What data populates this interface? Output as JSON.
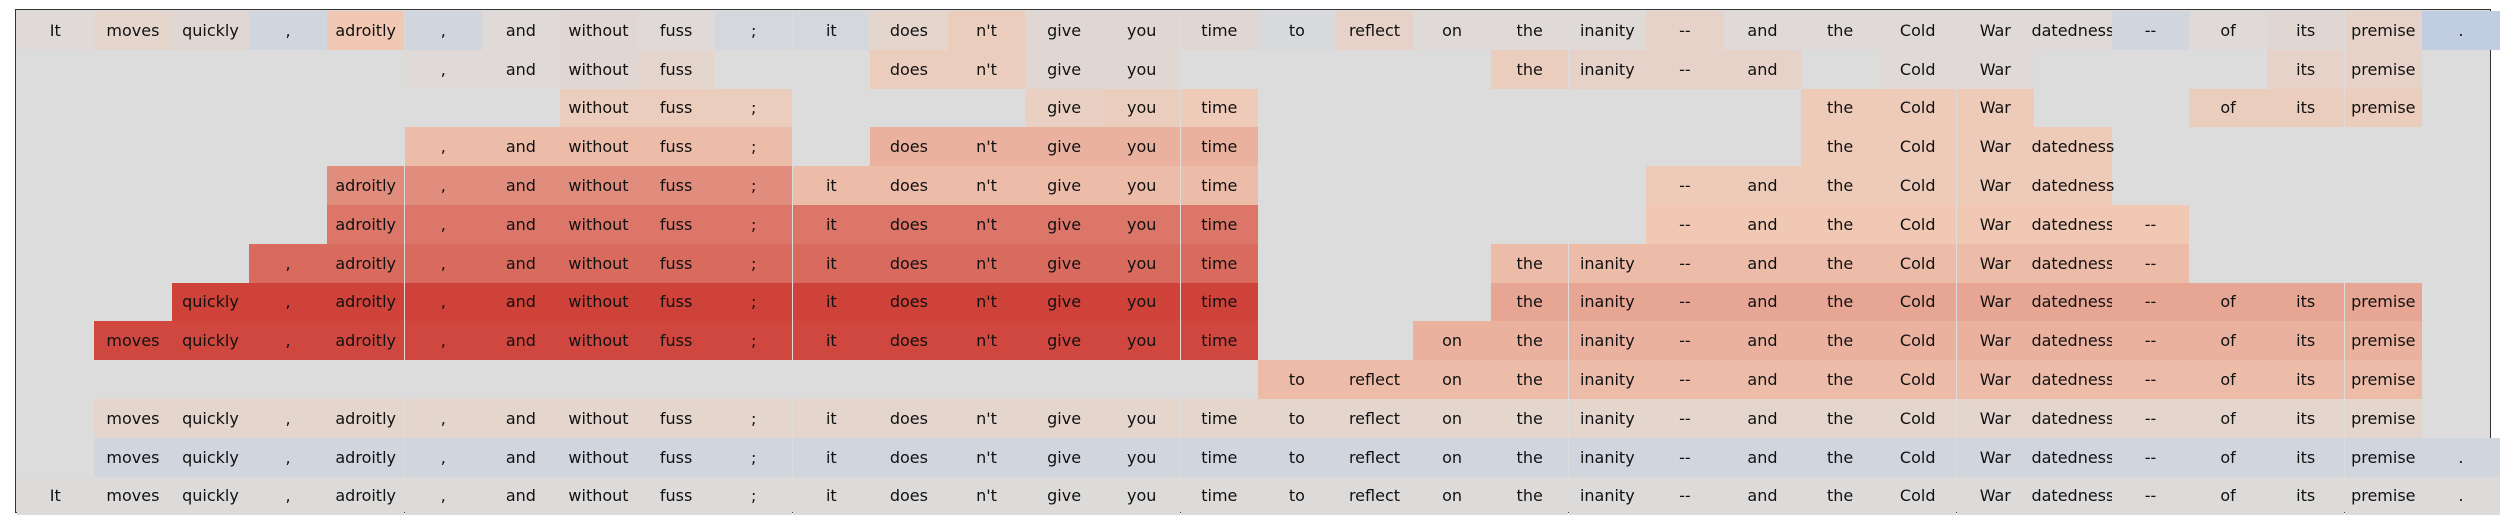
{
  "diagram": {
    "tokens": [
      "It",
      "moves",
      "quickly",
      ",",
      "adroitly",
      ",",
      "and",
      "without",
      "fuss",
      ";",
      "it",
      "does",
      "n't",
      "give",
      "you",
      "time",
      "to",
      "reflect",
      "on",
      "the",
      "inanity",
      "--",
      "and",
      "the",
      "Cold",
      "War",
      "datedness",
      "--",
      "of",
      "its",
      "premise",
      "."
    ],
    "rows": [
      {
        "present": [
          0,
          1,
          2,
          3,
          4,
          5,
          6,
          7,
          8,
          9,
          10,
          11,
          12,
          13,
          14,
          15,
          16,
          17,
          18,
          19,
          20,
          21,
          22,
          23,
          24,
          25,
          26,
          27,
          28,
          29,
          30,
          31
        ],
        "weights": [
          0.05,
          0.15,
          0.1,
          -0.15,
          0.4,
          -0.15,
          0.05,
          0.1,
          0.05,
          -0.1,
          -0.1,
          0.15,
          0.3,
          0.1,
          0.1,
          0.1,
          -0.05,
          0.2,
          0.05,
          0.05,
          0.05,
          0.2,
          0.05,
          0.05,
          0.05,
          0.05,
          0.05,
          -0.15,
          0.05,
          0.1,
          0.2,
          -0.35
        ]
      },
      {
        "present": [
          5,
          6,
          7,
          8,
          11,
          12,
          13,
          14,
          19,
          20,
          21,
          22,
          24,
          25,
          29,
          30
        ],
        "weights": [
          0.05,
          0.05,
          0.1,
          0.15,
          0.3,
          0.3,
          0.1,
          0.1,
          0.3,
          0.2,
          0.2,
          0.2,
          0.05,
          0.05,
          0.2,
          0.2
        ]
      },
      {
        "present": [
          7,
          8,
          9,
          13,
          14,
          15,
          23,
          24,
          25,
          28,
          29,
          30
        ],
        "weights": [
          0.3,
          0.3,
          0.3,
          0.25,
          0.3,
          0.35,
          0.35,
          0.35,
          0.35,
          0.3,
          0.3,
          0.3
        ]
      },
      {
        "present": [
          5,
          6,
          7,
          8,
          9,
          11,
          12,
          13,
          14,
          15,
          23,
          24,
          25,
          26
        ],
        "weights": [
          0.45,
          0.45,
          0.45,
          0.45,
          0.45,
          0.5,
          0.5,
          0.5,
          0.5,
          0.5,
          0.35,
          0.35,
          0.35,
          0.35
        ]
      },
      {
        "present": [
          4,
          5,
          6,
          7,
          8,
          9,
          10,
          11,
          12,
          13,
          14,
          15,
          21,
          22,
          23,
          24,
          25,
          26
        ],
        "weights": [
          0.65,
          0.65,
          0.65,
          0.65,
          0.65,
          0.65,
          0.45,
          0.45,
          0.45,
          0.45,
          0.45,
          0.45,
          0.35,
          0.35,
          0.35,
          0.35,
          0.35,
          0.35
        ]
      },
      {
        "present": [
          4,
          5,
          6,
          7,
          8,
          9,
          10,
          11,
          12,
          13,
          14,
          15,
          21,
          22,
          23,
          24,
          25,
          26,
          27
        ],
        "weights": [
          0.75,
          0.75,
          0.75,
          0.75,
          0.75,
          0.75,
          0.75,
          0.75,
          0.75,
          0.75,
          0.75,
          0.75,
          0.4,
          0.4,
          0.4,
          0.4,
          0.4,
          0.4,
          0.4
        ]
      },
      {
        "present": [
          3,
          4,
          5,
          6,
          7,
          8,
          9,
          10,
          11,
          12,
          13,
          14,
          15,
          19,
          20,
          21,
          22,
          23,
          24,
          25,
          26,
          27
        ],
        "weights": [
          0.8,
          0.8,
          0.8,
          0.8,
          0.8,
          0.8,
          0.8,
          0.8,
          0.8,
          0.8,
          0.8,
          0.8,
          0.8,
          0.45,
          0.45,
          0.45,
          0.45,
          0.45,
          0.45,
          0.45,
          0.45,
          0.45
        ]
      },
      {
        "present": [
          2,
          3,
          4,
          5,
          6,
          7,
          8,
          9,
          10,
          11,
          12,
          13,
          14,
          15,
          19,
          20,
          21,
          22,
          23,
          24,
          25,
          26,
          27,
          28,
          29,
          30
        ],
        "weights": [
          0.97,
          0.97,
          0.97,
          0.97,
          0.97,
          0.97,
          0.97,
          0.97,
          0.97,
          0.97,
          0.97,
          0.97,
          0.97,
          0.97,
          0.55,
          0.55,
          0.55,
          0.55,
          0.55,
          0.55,
          0.55,
          0.55,
          0.55,
          0.55,
          0.55,
          0.55
        ]
      },
      {
        "present": [
          1,
          2,
          3,
          4,
          5,
          6,
          7,
          8,
          9,
          10,
          11,
          12,
          13,
          14,
          15,
          18,
          19,
          20,
          21,
          22,
          23,
          24,
          25,
          26,
          27,
          28,
          29,
          30
        ],
        "weights": [
          0.95,
          0.95,
          0.95,
          0.95,
          0.95,
          0.95,
          0.95,
          0.95,
          0.95,
          0.95,
          0.95,
          0.95,
          0.95,
          0.95,
          0.95,
          0.5,
          0.5,
          0.5,
          0.5,
          0.5,
          0.5,
          0.5,
          0.5,
          0.5,
          0.5,
          0.5,
          0.5,
          0.5
        ]
      },
      {
        "present": [
          16,
          17,
          18,
          19,
          20,
          21,
          22,
          23,
          24,
          25,
          26,
          27,
          28,
          29,
          30
        ],
        "weights": [
          0.45,
          0.45,
          0.45,
          0.45,
          0.45,
          0.45,
          0.45,
          0.45,
          0.45,
          0.45,
          0.45,
          0.45,
          0.45,
          0.45,
          0.45
        ]
      },
      {
        "present": [
          1,
          2,
          3,
          4,
          5,
          6,
          7,
          8,
          9,
          10,
          11,
          12,
          13,
          14,
          15,
          16,
          17,
          18,
          19,
          20,
          21,
          22,
          23,
          24,
          25,
          26,
          27,
          28,
          29,
          30
        ],
        "weights": [
          0.15,
          0.15,
          0.15,
          0.15,
          0.15,
          0.15,
          0.15,
          0.15,
          0.15,
          0.15,
          0.15,
          0.15,
          0.15,
          0.15,
          0.15,
          0.15,
          0.15,
          0.15,
          0.15,
          0.15,
          0.15,
          0.15,
          0.15,
          0.15,
          0.15,
          0.15,
          0.15,
          0.15,
          0.15,
          0.15
        ]
      },
      {
        "present": [
          1,
          2,
          3,
          4,
          5,
          6,
          7,
          8,
          9,
          10,
          11,
          12,
          13,
          14,
          15,
          16,
          17,
          18,
          19,
          20,
          21,
          22,
          23,
          24,
          25,
          26,
          27,
          28,
          29,
          30,
          31
        ],
        "weights": [
          -0.15,
          -0.15,
          -0.15,
          -0.15,
          -0.15,
          -0.15,
          -0.15,
          -0.15,
          -0.15,
          -0.15,
          -0.15,
          -0.15,
          -0.15,
          -0.15,
          -0.15,
          -0.15,
          -0.15,
          -0.15,
          -0.15,
          -0.15,
          -0.15,
          -0.15,
          -0.15,
          -0.15,
          -0.15,
          -0.15,
          -0.15,
          -0.15,
          -0.15,
          -0.15,
          -0.15
        ]
      },
      {
        "present": [
          0,
          1,
          2,
          3,
          4,
          5,
          6,
          7,
          8,
          9,
          10,
          11,
          12,
          13,
          14,
          15,
          16,
          17,
          18,
          19,
          20,
          21,
          22,
          23,
          24,
          25,
          26,
          27,
          28,
          29,
          30,
          31
        ],
        "weights": [
          0.02,
          0.02,
          0.02,
          0.02,
          0.02,
          0.02,
          0.02,
          0.02,
          0.02,
          0.02,
          0.02,
          0.02,
          0.02,
          0.02,
          0.02,
          0.02,
          0.02,
          0.02,
          0.02,
          0.02,
          0.02,
          0.02,
          0.02,
          0.02,
          0.02,
          0.02,
          0.02,
          0.02,
          0.02,
          0.02,
          0.02,
          0.02
        ]
      }
    ],
    "colors": {
      "neutral": "#dcdcdc",
      "positive_max": "#cc3b33",
      "negative_max": "#8fb0e6",
      "frame_border": "#333333"
    }
  }
}
